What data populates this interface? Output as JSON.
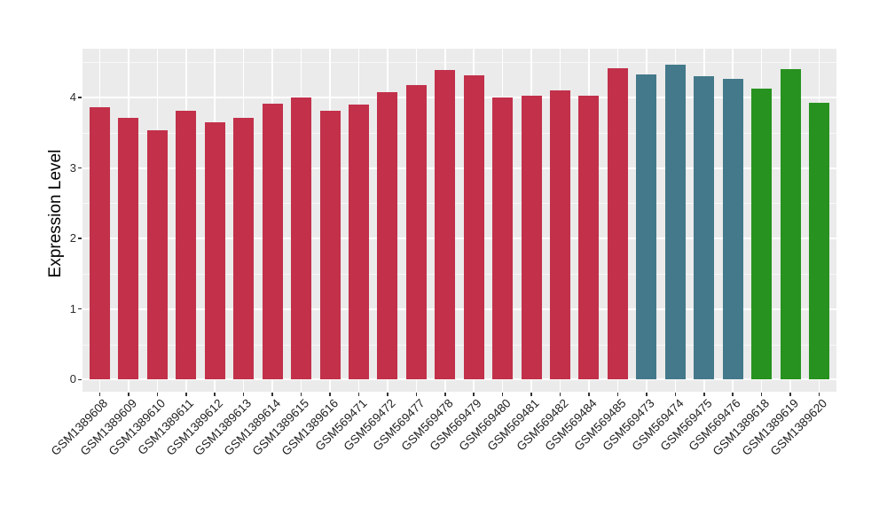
{
  "chart_data": {
    "type": "bar",
    "title": "",
    "xlabel": "",
    "ylabel": "Expression Level",
    "ylim": [
      -0.17,
      4.69
    ],
    "ytick_labels": [
      "0",
      "1",
      "2",
      "3",
      "4"
    ],
    "ytick_values": [
      0,
      1,
      2,
      3,
      4
    ],
    "grid": "on",
    "legend": "none",
    "panel_background": "#EBEBEB",
    "grid_color": "#FFFFFF",
    "tick_color": "#333333",
    "palette": {
      "crimson": "#C2304A",
      "teal": "#43798A",
      "green": "#27921F"
    },
    "categories": [
      "GSM1389608",
      "GSM1389609",
      "GSM1389610",
      "GSM1389611",
      "GSM1389612",
      "GSM1389613",
      "GSM1389614",
      "GSM1389615",
      "GSM1389616",
      "GSM569471",
      "GSM569472",
      "GSM569477",
      "GSM569478",
      "GSM569479",
      "GSM569480",
      "GSM569481",
      "GSM569482",
      "GSM569484",
      "GSM569485",
      "GSM569473",
      "GSM569474",
      "GSM569475",
      "GSM569476",
      "GSM1389618",
      "GSM1389619",
      "GSM1389620"
    ],
    "values": [
      3.86,
      3.71,
      3.54,
      3.81,
      3.65,
      3.71,
      3.91,
      4.0,
      3.81,
      3.9,
      4.08,
      4.17,
      4.39,
      4.32,
      4.0,
      4.02,
      4.1,
      4.02,
      4.41,
      4.33,
      4.46,
      4.3,
      4.26,
      4.13,
      4.4,
      3.92
    ],
    "bar_groups": [
      "crimson",
      "crimson",
      "crimson",
      "crimson",
      "crimson",
      "crimson",
      "crimson",
      "crimson",
      "crimson",
      "crimson",
      "crimson",
      "crimson",
      "crimson",
      "crimson",
      "crimson",
      "crimson",
      "crimson",
      "crimson",
      "crimson",
      "teal",
      "teal",
      "teal",
      "teal",
      "green",
      "green",
      "green"
    ]
  }
}
